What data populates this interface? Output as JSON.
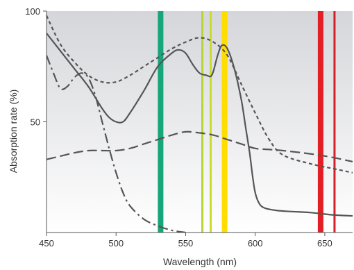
{
  "chart_data": {
    "type": "line",
    "title": "",
    "xlabel": "Wavelength (nm)",
    "ylabel": "Absorption rate  (%)",
    "xlim": [
      450,
      670
    ],
    "ylim": [
      0,
      100
    ],
    "x_ticks": [
      "450",
      "500",
      "550",
      "600",
      "650"
    ],
    "x_tick_values": [
      450,
      500,
      550,
      600,
      650
    ],
    "y_ticks": [
      "50",
      "100"
    ],
    "y_tick_values": [
      50,
      100
    ],
    "grid": false,
    "background": "gradient-gray",
    "colors": {
      "curve": "#555555",
      "frame": "#555555",
      "bg_top": "#d5d6da",
      "bg_bottom": "#ffffff"
    },
    "wavelength_bands": [
      {
        "wavelength": 532,
        "color": "#17a67a"
      },
      {
        "wavelength": 562,
        "color": "#b7d433"
      },
      {
        "wavelength": 568,
        "color": "#c9dc2c"
      },
      {
        "wavelength": 578,
        "color": "#ffdd00"
      },
      {
        "wavelength": 647,
        "color": "#e31e25"
      },
      {
        "wavelength": 657,
        "color": "#d42128"
      }
    ],
    "series": [
      {
        "style": "solid",
        "x": [
          450,
          460,
          470,
          480,
          490,
          495,
          500,
          505,
          510,
          520,
          530,
          540,
          545,
          550,
          555,
          560,
          565,
          568,
          570,
          573,
          576,
          580,
          585,
          590,
          593,
          596,
          598,
          600,
          603,
          607,
          615,
          625,
          640,
          655,
          670
        ],
        "y": [
          90,
          82,
          74,
          66,
          56,
          52,
          50,
          50,
          54,
          64,
          75,
          81,
          82.5,
          81,
          76,
          72,
          71,
          70.5,
          73,
          80,
          84.5,
          83,
          74,
          60,
          48,
          36,
          26,
          18,
          13,
          11,
          10,
          9.5,
          9,
          8,
          7.5
        ]
      },
      {
        "style": "short-dash",
        "x": [
          450,
          460,
          470,
          480,
          490,
          500,
          510,
          520,
          530,
          540,
          550,
          560,
          570,
          580,
          590,
          600,
          610,
          620,
          640,
          655,
          670
        ],
        "y": [
          98,
          85,
          77,
          71,
          68,
          68,
          71,
          75,
          79,
          83,
          86,
          88,
          86,
          80,
          67,
          54,
          42,
          35,
          31,
          29,
          27
        ]
      },
      {
        "style": "long-dash",
        "x": [
          450,
          460,
          470,
          480,
          490,
          500,
          510,
          520,
          530,
          540,
          550,
          560,
          570,
          580,
          590,
          600,
          610,
          620,
          640,
          655,
          670
        ],
        "y": [
          33,
          34.5,
          36,
          37,
          37,
          37,
          38,
          40,
          42,
          44,
          45.5,
          45,
          44,
          42,
          40,
          38,
          37.5,
          37,
          35.5,
          34,
          32
        ]
      },
      {
        "style": "dash-dot",
        "x": [
          450,
          455,
          460,
          465,
          470,
          475,
          480,
          485,
          490,
          495,
          500,
          505,
          510,
          520,
          530,
          540,
          550
        ],
        "y": [
          80,
          72,
          65,
          66,
          70,
          72,
          70,
          62,
          50,
          38,
          27,
          18,
          12,
          6,
          3,
          1,
          0
        ]
      }
    ]
  }
}
